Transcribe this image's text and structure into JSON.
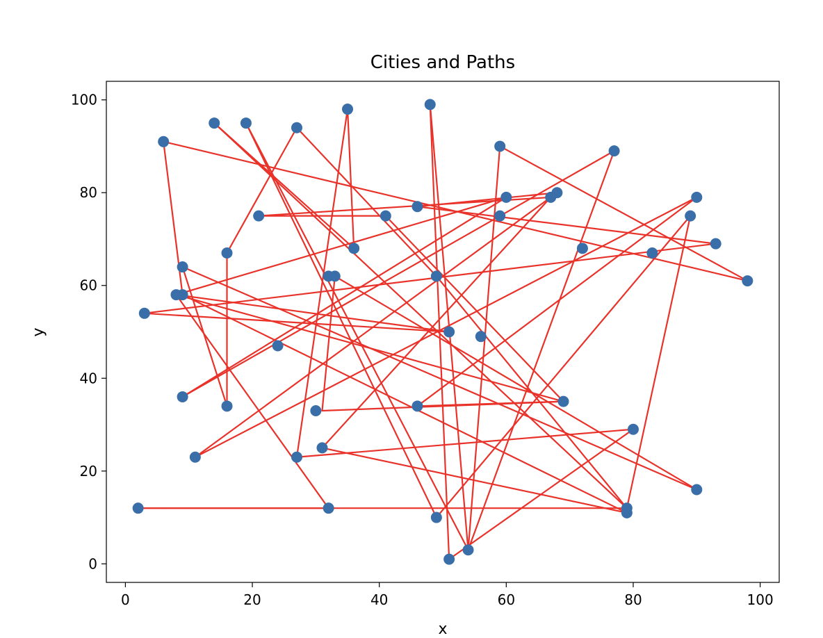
{
  "chart_data": {
    "type": "scatter",
    "title": "Cities and Paths",
    "xlabel": "x",
    "ylabel": "y",
    "xlim": [
      -3,
      103
    ],
    "ylim": [
      -4,
      104
    ],
    "xticks": [
      0,
      20,
      40,
      60,
      80,
      100
    ],
    "yticks": [
      0,
      20,
      40,
      60,
      80,
      100
    ],
    "xtick_labels": [
      "0",
      "20",
      "40",
      "60",
      "80",
      "100"
    ],
    "ytick_labels": [
      "0",
      "20",
      "40",
      "60",
      "80",
      "100"
    ],
    "grid": false,
    "colors": {
      "points": "#3a6ea8",
      "path": "#e8322a"
    },
    "points": [
      [
        2,
        12
      ],
      [
        3,
        54
      ],
      [
        6,
        91
      ],
      [
        8,
        58
      ],
      [
        9,
        64
      ],
      [
        9,
        58
      ],
      [
        9,
        36
      ],
      [
        11,
        23
      ],
      [
        14,
        95
      ],
      [
        16,
        67
      ],
      [
        16,
        34
      ],
      [
        19,
        95
      ],
      [
        21,
        75
      ],
      [
        24,
        47
      ],
      [
        27,
        94
      ],
      [
        27,
        23
      ],
      [
        30,
        33
      ],
      [
        31,
        25
      ],
      [
        32,
        12
      ],
      [
        32,
        62
      ],
      [
        33,
        62
      ],
      [
        35,
        98
      ],
      [
        36,
        68
      ],
      [
        41,
        75
      ],
      [
        46,
        77
      ],
      [
        46,
        34
      ],
      [
        48,
        99
      ],
      [
        49,
        62
      ],
      [
        49,
        10
      ],
      [
        51,
        50
      ],
      [
        51,
        1
      ],
      [
        54,
        3
      ],
      [
        56,
        49
      ],
      [
        59,
        90
      ],
      [
        59,
        75
      ],
      [
        60,
        79
      ],
      [
        67,
        79
      ],
      [
        68,
        80
      ],
      [
        69,
        35
      ],
      [
        72,
        68
      ],
      [
        77,
        89
      ],
      [
        79,
        12
      ],
      [
        79,
        11
      ],
      [
        80,
        29
      ],
      [
        83,
        67
      ],
      [
        89,
        75
      ],
      [
        90,
        79
      ],
      [
        90,
        16
      ],
      [
        93,
        69
      ],
      [
        98,
        61
      ]
    ],
    "path": [
      [
        2,
        12
      ],
      [
        32,
        12
      ],
      [
        8,
        58
      ],
      [
        69,
        35
      ],
      [
        31,
        33
      ],
      [
        33,
        62
      ],
      [
        90,
        16
      ],
      [
        9,
        64
      ],
      [
        16,
        34
      ],
      [
        16,
        67
      ],
      [
        27,
        94
      ],
      [
        49,
        62
      ],
      [
        79,
        12
      ],
      [
        14,
        95
      ],
      [
        36,
        68
      ],
      [
        35,
        98
      ],
      [
        27,
        23
      ],
      [
        80,
        29
      ],
      [
        51,
        1
      ],
      [
        48,
        99
      ],
      [
        54,
        3
      ],
      [
        59,
        90
      ],
      [
        98,
        61
      ],
      [
        6,
        91
      ],
      [
        9,
        58
      ],
      [
        79,
        11
      ],
      [
        31,
        25
      ],
      [
        67,
        79
      ],
      [
        21,
        75
      ],
      [
        41,
        75
      ],
      [
        69,
        35
      ],
      [
        46,
        34
      ],
      [
        90,
        79
      ],
      [
        11,
        23
      ],
      [
        68,
        80
      ],
      [
        46,
        77
      ],
      [
        93,
        69
      ],
      [
        3,
        54
      ],
      [
        51,
        50
      ],
      [
        8,
        58
      ],
      [
        60,
        79
      ],
      [
        9,
        36
      ],
      [
        77,
        89
      ],
      [
        54,
        3
      ],
      [
        19,
        95
      ],
      [
        49,
        10
      ],
      [
        89,
        75
      ],
      [
        79,
        12
      ],
      [
        6,
        12
      ],
      [
        2,
        12
      ]
    ]
  }
}
